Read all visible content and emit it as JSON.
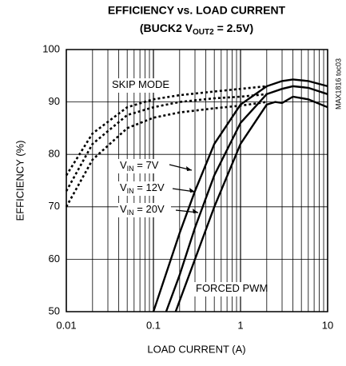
{
  "chart_data": {
    "type": "line",
    "title": "EFFICIENCY vs. LOAD CURRENT",
    "subtitle_parts": [
      "(BUCK2 V",
      "OUT2",
      " = 2.5V)"
    ],
    "xlabel": "LOAD CURRENT (A)",
    "ylabel": "EFFICIENCY (%)",
    "side_note": "MAX1816 toc03",
    "xscale": "log",
    "xlim": [
      0.01,
      10
    ],
    "xticks": [
      0.01,
      0.1,
      1,
      10
    ],
    "ylim": [
      50,
      100
    ],
    "yticks": [
      50,
      60,
      70,
      80,
      90,
      100
    ],
    "grid": true,
    "minor_grid": true,
    "series": [
      {
        "color": "#000",
        "dashed": true,
        "x": [
          0.01,
          0.02,
          0.05,
          0.1,
          0.2,
          0.5,
          1,
          2
        ],
        "values": [
          76,
          84,
          89,
          90.5,
          91.3,
          92,
          92.5,
          93
        ]
      },
      {
        "color": "#000",
        "dashed": true,
        "x": [
          0.01,
          0.02,
          0.05,
          0.1,
          0.2,
          0.5,
          1,
          2
        ],
        "values": [
          73,
          82,
          87.5,
          89,
          90,
          90.7,
          91,
          91.5
        ]
      },
      {
        "color": "#000",
        "dashed": true,
        "x": [
          0.01,
          0.02,
          0.05,
          0.1,
          0.2,
          0.5,
          1,
          2
        ],
        "values": [
          70,
          79,
          85,
          87,
          88,
          88.8,
          89.3,
          90
        ]
      },
      {
        "color": "#000",
        "dashed": false,
        "x": [
          0.1,
          0.2,
          0.3,
          0.5,
          1,
          2,
          3,
          4,
          6,
          10
        ],
        "values": [
          50,
          65,
          73,
          82,
          89.5,
          93,
          94,
          94.3,
          94,
          93
        ]
      },
      {
        "color": "#000",
        "dashed": false,
        "x": [
          0.14,
          0.2,
          0.3,
          0.5,
          1,
          2,
          3,
          4,
          6,
          10
        ],
        "values": [
          50,
          57,
          66,
          76,
          86,
          91.5,
          92.5,
          93,
          92.7,
          91.5
        ]
      },
      {
        "color": "#000",
        "dashed": false,
        "x": [
          0.18,
          0.3,
          0.5,
          1,
          2,
          2.5,
          3,
          4,
          6,
          10
        ],
        "values": [
          50,
          60,
          70,
          82,
          89.5,
          90,
          89.8,
          91,
          90.5,
          89
        ]
      }
    ],
    "annotations": [
      {
        "parts": [
          "SKIP MODE"
        ]
      },
      {
        "parts": [
          "FORCED PWM"
        ]
      },
      {
        "parts": [
          "V",
          "IN",
          " = 7V"
        ]
      },
      {
        "parts": [
          "V",
          "IN",
          " = 12V"
        ]
      },
      {
        "parts": [
          "V",
          "IN",
          " = 20V"
        ]
      }
    ]
  }
}
